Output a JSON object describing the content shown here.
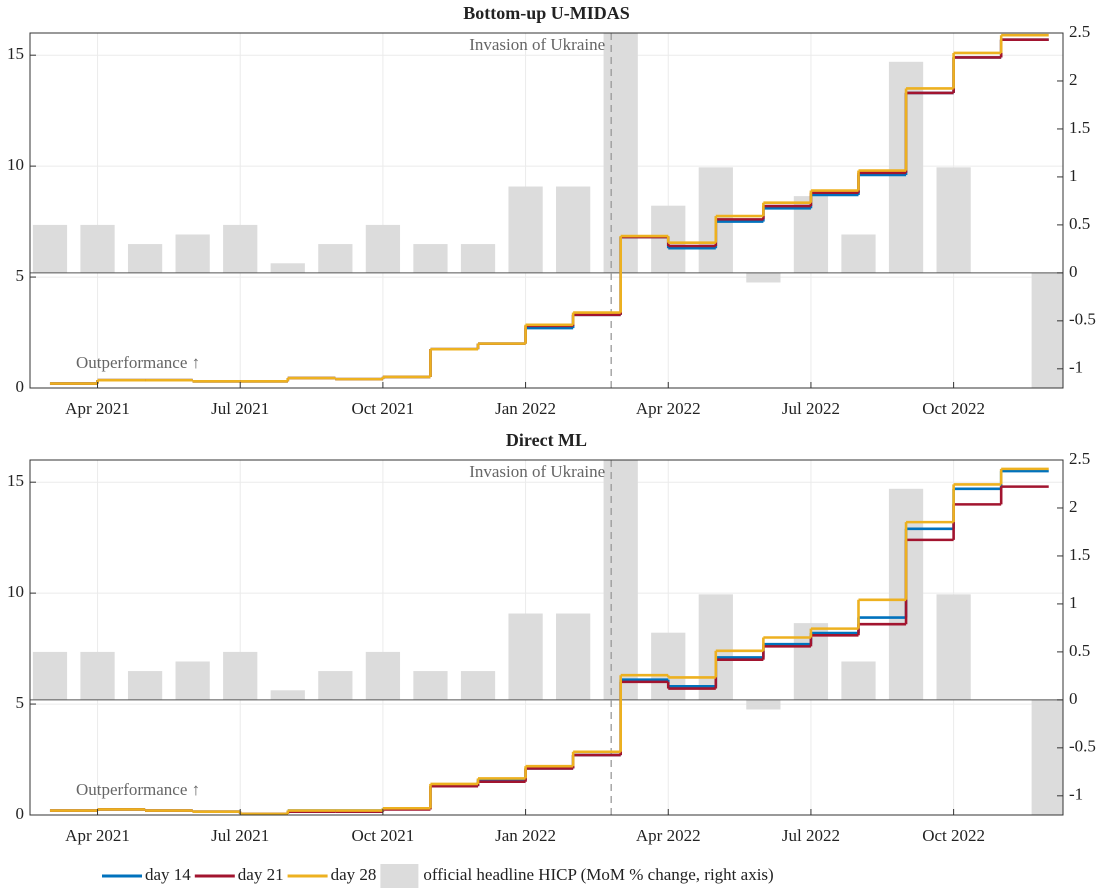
{
  "chart_data": [
    {
      "type": "step",
      "title": "Bottom-up U-MIDAS",
      "x": [
        "Mar 2021",
        "Apr 2021",
        "May 2021",
        "Jun 2021",
        "Jul 2021",
        "Aug 2021",
        "Sep 2021",
        "Oct 2021",
        "Nov 2021",
        "Dec 2021",
        "Jan 2022",
        "Feb 2022",
        "Mar 2022",
        "Apr 2022",
        "May 2022",
        "Jun 2022",
        "Jul 2022",
        "Aug 2022",
        "Sep 2022",
        "Oct 2022",
        "Nov 2022",
        "Dec 2022"
      ],
      "ylim": [
        0,
        16
      ],
      "yticks": [
        0,
        5,
        10,
        15
      ],
      "y2lim": [
        -1.2,
        2.5
      ],
      "y2ticks": [
        -1,
        -0.5,
        0,
        0.5,
        1,
        1.5,
        2,
        2.5
      ],
      "grid": true,
      "annotations": [
        "Invasion of Ukraine",
        "Outperformance ↑"
      ],
      "series": [
        {
          "name": "day 14",
          "color": "#0072bd",
          "values": [
            0.2,
            0.35,
            0.35,
            0.3,
            0.3,
            0.45,
            0.4,
            0.5,
            1.75,
            2.0,
            2.7,
            3.3,
            6.8,
            6.3,
            7.5,
            8.1,
            8.7,
            9.6,
            13.3,
            14.9,
            15.7,
            null
          ]
        },
        {
          "name": "day 21",
          "color": "#a2142f",
          "values": [
            0.2,
            0.35,
            0.35,
            0.3,
            0.3,
            0.45,
            0.4,
            0.5,
            1.75,
            2.0,
            2.8,
            3.3,
            6.8,
            6.4,
            7.6,
            8.2,
            8.8,
            9.7,
            13.3,
            14.9,
            15.7,
            null
          ]
        },
        {
          "name": "day 28",
          "color": "#edb120",
          "values": [
            0.2,
            0.35,
            0.35,
            0.3,
            0.3,
            0.45,
            0.4,
            0.5,
            1.75,
            2.0,
            2.85,
            3.4,
            6.85,
            6.55,
            7.75,
            8.35,
            8.9,
            9.8,
            13.5,
            15.1,
            15.9,
            null
          ]
        },
        {
          "name": "official headline HICP (MoM % change, right axis)",
          "type": "bar",
          "axis": "y2",
          "color": "#dcdcdc",
          "values": [
            0.5,
            0.5,
            0.3,
            0.4,
            0.5,
            0.1,
            0.3,
            0.5,
            0.3,
            0.3,
            0.9,
            0.9,
            2.5,
            0.7,
            1.1,
            -0.1,
            0.8,
            0.4,
            2.2,
            1.1,
            0,
            -1.2
          ]
        }
      ]
    },
    {
      "type": "step",
      "title": "Direct ML",
      "x": [
        "Mar 2021",
        "Apr 2021",
        "May 2021",
        "Jun 2021",
        "Jul 2021",
        "Aug 2021",
        "Sep 2021",
        "Oct 2021",
        "Nov 2021",
        "Dec 2021",
        "Jan 2022",
        "Feb 2022",
        "Mar 2022",
        "Apr 2022",
        "May 2022",
        "Jun 2022",
        "Jul 2022",
        "Aug 2022",
        "Sep 2022",
        "Oct 2022",
        "Nov 2022",
        "Dec 2022"
      ],
      "ylim": [
        0,
        16
      ],
      "yticks": [
        0,
        5,
        10,
        15
      ],
      "y2lim": [
        -1.2,
        2.5
      ],
      "y2ticks": [
        -1,
        -0.5,
        0,
        0.5,
        1,
        1.5,
        2,
        2.5
      ],
      "grid": true,
      "annotations": [
        "Invasion of Ukraine",
        "Outperformance ↑"
      ],
      "series": [
        {
          "name": "day 14",
          "color": "#0072bd",
          "values": [
            0.2,
            0.25,
            0.2,
            0.15,
            0.05,
            0.2,
            0.2,
            0.3,
            1.3,
            1.6,
            2.1,
            2.7,
            6.1,
            5.8,
            7.1,
            7.7,
            8.2,
            8.9,
            12.9,
            14.7,
            15.5,
            null
          ]
        },
        {
          "name": "day 21",
          "color": "#a2142f",
          "values": [
            0.2,
            0.25,
            0.2,
            0.15,
            0.05,
            0.15,
            0.15,
            0.25,
            1.3,
            1.5,
            2.1,
            2.7,
            6.0,
            5.7,
            7.0,
            7.6,
            8.1,
            8.6,
            12.4,
            14.0,
            14.8,
            null
          ]
        },
        {
          "name": "day 28",
          "color": "#edb120",
          "values": [
            0.2,
            0.25,
            0.2,
            0.15,
            0.05,
            0.2,
            0.2,
            0.3,
            1.4,
            1.65,
            2.2,
            2.85,
            6.3,
            6.2,
            7.4,
            8.0,
            8.4,
            9.7,
            13.2,
            14.9,
            15.6,
            null
          ]
        },
        {
          "name": "official headline HICP (MoM % change, right axis)",
          "type": "bar",
          "axis": "y2",
          "color": "#dcdcdc",
          "values": [
            0.5,
            0.5,
            0.3,
            0.4,
            0.5,
            0.1,
            0.3,
            0.5,
            0.3,
            0.3,
            0.9,
            0.9,
            2.5,
            0.7,
            1.1,
            -0.1,
            0.8,
            0.4,
            2.2,
            1.1,
            0,
            -1.2
          ]
        }
      ]
    }
  ]
}
